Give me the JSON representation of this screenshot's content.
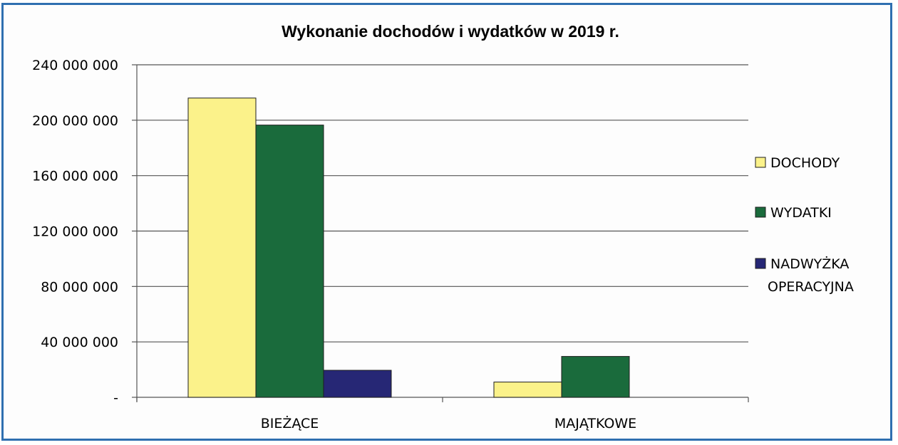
{
  "chart_data": {
    "type": "bar",
    "title": "Wykonanie dochodów i wydatków w 2019 r.",
    "xlabel": "",
    "ylabel": "",
    "categories": [
      "BIEŻĄCE",
      "MAJĄTKOWE"
    ],
    "series": [
      {
        "name": "DOCHODY",
        "values": [
          216000000,
          11000000
        ],
        "color": "#fbf28a"
      },
      {
        "name": "WYDATKI",
        "values": [
          196500000,
          29500000
        ],
        "color": "#1a6b3c"
      },
      {
        "name": "NADWYŻKA OPERACYJNA",
        "values": [
          19500000,
          null
        ],
        "color": "#262775"
      }
    ],
    "ylim": [
      0,
      240000000
    ],
    "y_ticks": [
      0,
      40000000,
      80000000,
      120000000,
      160000000,
      200000000,
      240000000
    ],
    "y_tick_labels": [
      "-",
      "40 000 000",
      "80 000 000",
      "120 000 000",
      "160 000 000",
      "200 000 000",
      "240 000 000"
    ],
    "grid": true,
    "legend_position": "right"
  }
}
